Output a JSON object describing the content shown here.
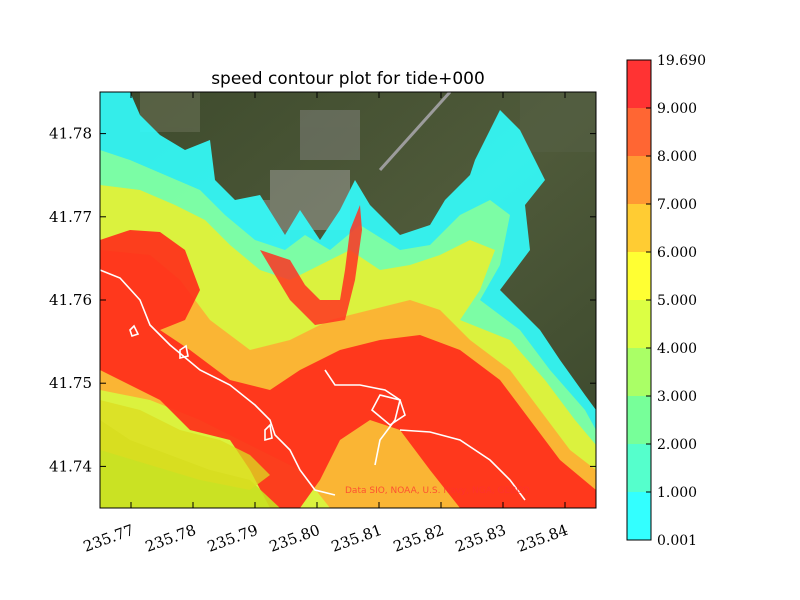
{
  "chart_data": {
    "type": "heatmap",
    "title": "speed contour plot for tide+000",
    "xlabel": "",
    "ylabel": "",
    "xlim": [
      235.765,
      235.845
    ],
    "ylim": [
      41.735,
      41.785
    ],
    "xticks": [
      235.77,
      235.78,
      235.79,
      235.8,
      235.81,
      235.82,
      235.83,
      235.84
    ],
    "xtick_labels": [
      "235.77",
      "235.78",
      "235.79",
      "235.80",
      "235.81",
      "235.82",
      "235.83",
      "235.84"
    ],
    "yticks": [
      41.74,
      41.75,
      41.76,
      41.77,
      41.78
    ],
    "ytick_labels": [
      "41.74",
      "41.75",
      "41.76",
      "41.77",
      "41.78"
    ],
    "colorbar": {
      "levels": [
        0.001,
        1.0,
        2.0,
        3.0,
        4.0,
        5.0,
        6.0,
        7.0,
        8.0,
        9.0,
        19.69
      ],
      "labels": [
        "0.001",
        "1.000",
        "2.000",
        "3.000",
        "4.000",
        "5.000",
        "6.000",
        "7.000",
        "8.000",
        "9.000",
        "19.690"
      ],
      "colors": [
        "#33ffff",
        "#55ffcc",
        "#77ff99",
        "#aaff66",
        "#dcff44",
        "#ffff33",
        "#ffcc33",
        "#ff9933",
        "#ff6633",
        "#ff3333"
      ]
    },
    "basemap_credit": "Data SIO, NOAA, U.S. Navy, NGA, GEBCO",
    "grid": false,
    "legend": "colorbar-right"
  }
}
